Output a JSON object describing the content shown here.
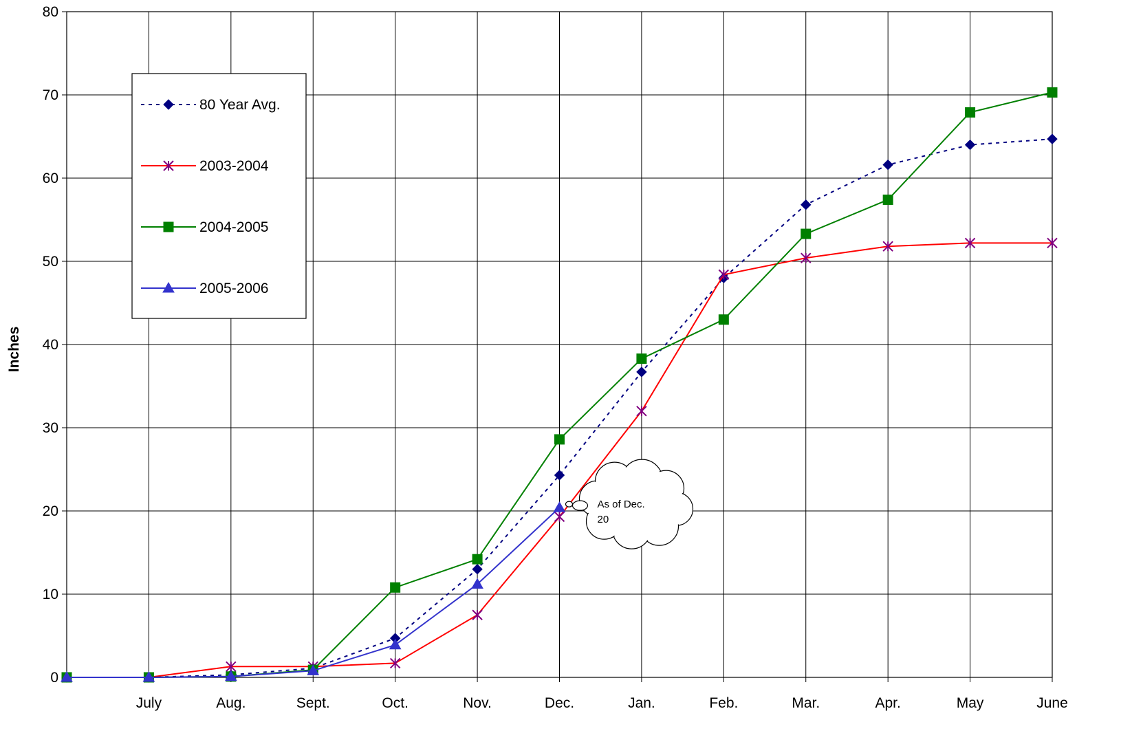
{
  "chart_data": {
    "type": "line",
    "title": "",
    "xlabel": "",
    "ylabel": "Inches",
    "ylim": [
      0,
      80
    ],
    "yticks": [
      0,
      10,
      20,
      30,
      40,
      50,
      60,
      70,
      80
    ],
    "categories": [
      "",
      "July",
      "Aug.",
      "Sept.",
      "Oct.",
      "Nov.",
      "Dec.",
      "Jan.",
      "Feb.",
      "Mar.",
      "Apr.",
      "May",
      "June"
    ],
    "grid": true,
    "legend_position": "top-left",
    "series": [
      {
        "name": "80 Year Avg.",
        "color": "#000080",
        "line_style": "dotted",
        "marker": "diamond",
        "values": [
          0,
          0,
          0.3,
          1.1,
          4.7,
          13.0,
          24.3,
          36.7,
          48.0,
          56.8,
          61.6,
          64.0,
          64.7
        ]
      },
      {
        "name": "2003-2004",
        "color": "#ff0000",
        "marker_color": "#800080",
        "line_style": "solid",
        "marker": "asterisk",
        "values": [
          0,
          0,
          1.3,
          1.3,
          1.7,
          7.5,
          19.3,
          32.0,
          48.4,
          50.4,
          51.8,
          52.2,
          52.2
        ]
      },
      {
        "name": "2004-2005",
        "color": "#008000",
        "line_style": "solid",
        "marker": "square",
        "values": [
          0,
          0,
          0.1,
          0.9,
          10.8,
          14.2,
          28.6,
          38.3,
          43.0,
          53.3,
          57.4,
          67.9,
          70.3
        ]
      },
      {
        "name": "2005-2006",
        "color": "#3333cc",
        "line_style": "solid",
        "marker": "triangle",
        "values": [
          0,
          0,
          0.1,
          0.8,
          3.9,
          11.2,
          20.4,
          null,
          null,
          null,
          null,
          null,
          null
        ]
      }
    ],
    "annotation": {
      "text_lines": [
        "As of Dec.",
        "20"
      ],
      "category_index": 6,
      "value": 20.4,
      "shape": "cloud-callout"
    }
  }
}
